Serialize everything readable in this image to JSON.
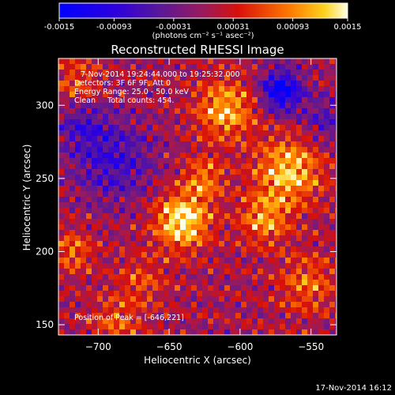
{
  "chart_data": {
    "type": "heatmap",
    "colorbar": {
      "ticks": [
        "-0.0015",
        "-0.00093",
        "-0.00031",
        "0.00031",
        "0.00093",
        "0.0015"
      ],
      "tick_values": [
        -0.0015,
        -0.00093,
        -0.00031,
        0.00031,
        0.00093,
        0.0015
      ],
      "range": [
        -0.0015,
        0.0015
      ],
      "units_label": "(photons cm⁻² s⁻¹ asec⁻²)"
    },
    "title": "Reconstructed RHESSI Image",
    "annotations": [
      "7-Nov-2014 19:24:44.000 to 19:25:32.000",
      "Detectors: 3F 6F 9F, Att 0",
      "Energy Range: 25.0 - 50.0 keV",
      "Clean     Total counts: 454."
    ],
    "peak_label": "Position of Peak = [-646,221]",
    "xlabel": "Heliocentric X (arcsec)",
    "ylabel": "Heliocentric Y (arcsec)",
    "xlim": [
      -728,
      -532
    ],
    "ylim": [
      143,
      332
    ],
    "xticks": [
      -700,
      -650,
      -600,
      -550
    ],
    "xtick_labels": [
      "−700",
      "−650",
      "−600",
      "−550"
    ],
    "yticks": [
      150,
      200,
      250,
      300
    ],
    "ytick_labels": [
      "150",
      "200",
      "250",
      "300"
    ],
    "grid": false,
    "blobs": [
      {
        "x": -642,
        "y": 221,
        "value": 0.0015,
        "sigma": 13
      },
      {
        "x": -612,
        "y": 297,
        "value": 0.0011,
        "sigma": 14
      },
      {
        "x": -568,
        "y": 255,
        "value": 0.0012,
        "sigma": 16
      },
      {
        "x": -585,
        "y": 222,
        "value": 0.0009,
        "sigma": 12
      },
      {
        "x": -718,
        "y": 200,
        "value": 0.0007,
        "sigma": 10
      },
      {
        "x": -715,
        "y": 316,
        "value": 0.0006,
        "sigma": 11
      },
      {
        "x": -688,
        "y": 152,
        "value": 0.0006,
        "sigma": 12
      },
      {
        "x": -627,
        "y": 250,
        "value": 0.0008,
        "sigma": 10
      },
      {
        "x": -555,
        "y": 178,
        "value": 0.0007,
        "sigma": 14
      },
      {
        "x": -670,
        "y": 180,
        "value": 0.0005,
        "sigma": 12
      },
      {
        "x": -573,
        "y": 310,
        "value": -0.0015,
        "sigma": 10
      },
      {
        "x": -690,
        "y": 262,
        "value": -0.0008,
        "sigma": 20
      },
      {
        "x": -712,
        "y": 287,
        "value": -0.0006,
        "sigma": 12
      },
      {
        "x": -542,
        "y": 290,
        "value": -0.0006,
        "sigma": 12
      }
    ]
  },
  "footer": {
    "date": "17-Nov-2014 16:12"
  }
}
